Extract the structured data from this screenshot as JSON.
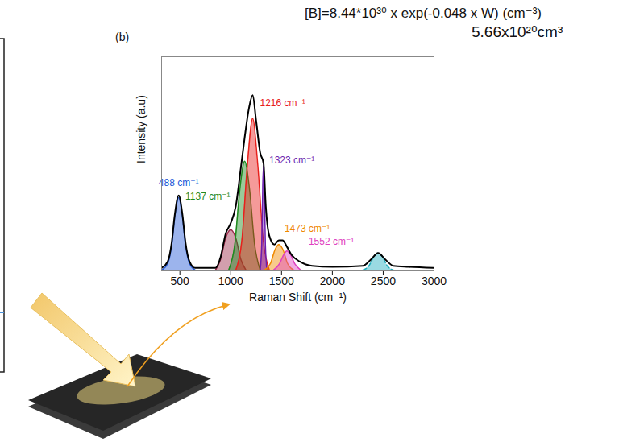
{
  "chart_data": {
    "type": "area",
    "annotations": [
      "[B]=8.44*10³⁰ x exp(-0.048 x W) (cm⁻³)",
      "(b)",
      "5.66x10²⁰cm³"
    ],
    "x_label": "Raman Shift (cm⁻¹)",
    "y_label": "Intensity (a.u)",
    "xlim": [
      320,
      3000
    ],
    "xticks": [
      500,
      1000,
      1500,
      2000,
      2500,
      3000
    ],
    "ylim": [
      0,
      1
    ],
    "tick_labels": "x",
    "grid": false,
    "series": [
      {
        "name": "488 cm⁻¹",
        "type": "area",
        "color": "#2458d8",
        "line_style": "solid",
        "x": [
          320,
          380,
          420,
          450,
          488,
          525,
          555,
          595,
          650
        ],
        "values": [
          0,
          0.03,
          0.12,
          0.25,
          0.34,
          0.25,
          0.12,
          0.03,
          0
        ]
      },
      {
        "type": "area",
        "color": "#9b2a4a",
        "line_style": "solid",
        "x": [
          850,
          900,
          950,
          1000,
          1050,
          1100,
          1150
        ],
        "values": [
          0,
          0.05,
          0.15,
          0.19,
          0.15,
          0.05,
          0
        ]
      },
      {
        "name": "1137 cm⁻¹",
        "type": "area",
        "color": "#1f8a1f",
        "line_style": "solid",
        "x": [
          980,
          1040,
          1090,
          1137,
          1185,
          1235,
          1290
        ],
        "values": [
          0,
          0.12,
          0.38,
          0.51,
          0.38,
          0.12,
          0
        ]
      },
      {
        "name": "1216 cm⁻¹",
        "type": "area",
        "color": "#e8201c",
        "line_style": "solid",
        "x": [
          1050,
          1110,
          1165,
          1216,
          1265,
          1320,
          1380
        ],
        "values": [
          0,
          0.14,
          0.5,
          0.71,
          0.5,
          0.14,
          0
        ]
      },
      {
        "name": "1323 cm⁻¹",
        "type": "area",
        "color": "#6a1fb0",
        "line_style": "solid",
        "x": [
          1290,
          1305,
          1315,
          1323,
          1331,
          1341,
          1356
        ],
        "values": [
          0,
          0.12,
          0.38,
          0.49,
          0.38,
          0.12,
          0
        ]
      },
      {
        "name": "1473 cm⁻¹",
        "type": "area",
        "color": "#f08a00",
        "line_style": "solid",
        "x": [
          1330,
          1390,
          1440,
          1473,
          1510,
          1560,
          1620
        ],
        "values": [
          0,
          0.03,
          0.1,
          0.12,
          0.1,
          0.03,
          0
        ]
      },
      {
        "name": "1552 cm⁻¹",
        "type": "area",
        "color": "#e040c0",
        "line_style": "solid",
        "x": [
          1420,
          1480,
          1525,
          1552,
          1585,
          1630,
          1690
        ],
        "values": [
          0,
          0.03,
          0.075,
          0.09,
          0.075,
          0.03,
          0
        ]
      },
      {
        "type": "area",
        "color": "#20aebe",
        "line_style": "dashed",
        "x": [
          2300,
          2360,
          2410,
          2450,
          2490,
          2540,
          2600
        ],
        "values": [
          0,
          0.02,
          0.065,
          0.08,
          0.065,
          0.02,
          0
        ]
      },
      {
        "type": "line",
        "color": "#000000",
        "line_style": "solid",
        "x": [
          320,
          380,
          420,
          450,
          488,
          525,
          555,
          595,
          650,
          750,
          850,
          900,
          950,
          1000,
          1050,
          1100,
          1137,
          1180,
          1216,
          1250,
          1290,
          1323,
          1345,
          1380,
          1430,
          1473,
          1510,
          1552,
          1600,
          1680,
          1800,
          2000,
          2300,
          2380,
          2450,
          2520,
          2600,
          2750,
          3000
        ],
        "values": [
          0.01,
          0.04,
          0.13,
          0.26,
          0.35,
          0.26,
          0.13,
          0.04,
          0.01,
          0.01,
          0.01,
          0.06,
          0.17,
          0.22,
          0.3,
          0.48,
          0.62,
          0.76,
          0.82,
          0.7,
          0.55,
          0.5,
          0.3,
          0.16,
          0.12,
          0.14,
          0.14,
          0.11,
          0.07,
          0.04,
          0.02,
          0.015,
          0.02,
          0.05,
          0.08,
          0.05,
          0.02,
          0.015,
          0.01
        ]
      }
    ]
  }
}
